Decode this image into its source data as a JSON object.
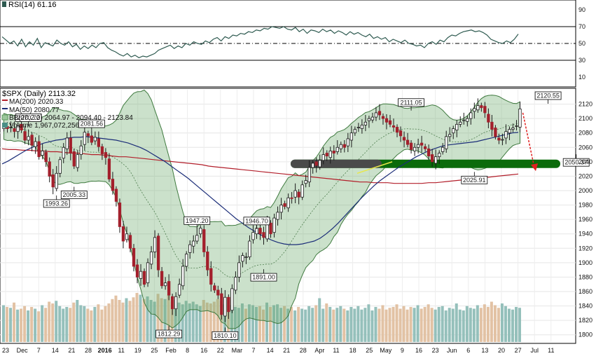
{
  "chart_data": [
    {
      "type": "line",
      "panel": "rsi",
      "title": "RSI(14) 61.16",
      "levels": [
        70,
        50,
        30
      ],
      "ylim": [
        0,
        100
      ],
      "ticks": [
        90,
        70,
        50,
        30,
        10
      ],
      "series": [
        {
          "name": "RSI(14)",
          "color": "#2e5a50",
          "values": [
            58,
            54,
            50,
            53,
            47,
            55,
            46,
            52,
            48,
            56,
            45,
            51,
            49,
            47,
            54,
            50,
            48,
            52,
            46,
            49,
            43,
            47,
            44,
            48,
            45,
            50,
            51,
            45,
            42,
            40,
            37,
            35,
            38,
            34,
            36,
            33,
            35,
            34,
            36,
            38,
            42,
            44,
            46,
            48,
            44,
            47,
            45,
            50,
            48,
            52,
            50,
            49,
            53,
            51,
            55,
            57,
            53,
            58,
            56,
            60,
            59,
            62,
            61,
            64,
            63,
            66,
            65,
            68,
            67,
            70,
            69,
            68,
            70,
            67,
            66,
            69,
            64,
            67,
            62,
            66,
            65,
            63,
            67,
            64,
            66,
            62,
            65,
            63,
            60,
            64,
            61,
            63,
            60,
            58,
            61,
            56,
            58,
            55,
            57,
            52,
            55,
            53,
            51,
            54,
            50,
            49,
            47,
            48,
            45,
            50,
            52,
            49,
            54,
            52,
            57,
            60,
            59,
            62,
            64,
            65,
            66,
            64,
            65,
            63,
            60,
            55,
            53,
            51,
            50,
            53,
            51,
            55,
            61.16
          ]
        }
      ]
    },
    {
      "type": "candlestick",
      "panel": "price",
      "title": "$SPX (Daily) 2113.32",
      "legend": [
        {
          "label": "MA(200) 2020.33",
          "color": "#b21e2a"
        },
        {
          "label": "MA(50) 2080.77",
          "color": "#1b2d78"
        },
        {
          "label": "BB(20,2.0) 2064.97 - 2094.40 - 2123.84",
          "color": "#6aa86a"
        },
        {
          "label": "Volume 1,967,072,256",
          "color": "#4a8f86"
        }
      ],
      "ylim": [
        1790,
        2140
      ],
      "ticks": [
        2120,
        2100,
        2080,
        2060,
        2040,
        2020,
        2000,
        1980,
        1960,
        1940,
        1920,
        1900,
        1880,
        1860,
        1840,
        1820,
        1800
      ],
      "x_labels": [
        "23",
        "Dec",
        "7",
        "14",
        "21",
        "28",
        "2016",
        "11",
        "19",
        "25",
        "Feb",
        "8",
        "16",
        "22",
        "Mar",
        "7",
        "14",
        "21",
        "28",
        "Apr",
        "11",
        "18",
        "25",
        "May",
        "9",
        "16",
        "23",
        "Jun",
        "6",
        "13",
        "20",
        "27",
        "Jul",
        "11"
      ],
      "closes": [
        2089,
        2086,
        2088,
        2082,
        2090,
        2084,
        2070,
        2075,
        2063,
        2068,
        2047,
        2055,
        2040,
        2020,
        2005,
        2024,
        2043,
        2060,
        2073,
        2052,
        2034,
        2050,
        2062,
        2081,
        2076,
        2067,
        2074,
        2061,
        2051,
        2046,
        2016,
        2000,
        1985,
        1950,
        1930,
        1940,
        1920,
        1895,
        1880,
        1888,
        1870,
        1900,
        1915,
        1935,
        1890,
        1868,
        1872,
        1855,
        1836,
        1853,
        1870,
        1895,
        1912,
        1925,
        1930,
        1938,
        1948,
        1915,
        1890,
        1870,
        1862,
        1855,
        1828,
        1852,
        1832,
        1864,
        1880,
        1900,
        1910,
        1908,
        1930,
        1942,
        1948,
        1940,
        1935,
        1955,
        1940,
        1962,
        1970,
        1980,
        1978,
        1990,
        1989,
        2000,
        1991,
        2008,
        2014,
        2032,
        2038,
        2035,
        2042,
        2050,
        2048,
        2055,
        2052,
        2060,
        2064,
        2060,
        2072,
        2080,
        2085,
        2088,
        2091,
        2095,
        2100,
        2102,
        2108,
        2105,
        2100,
        2095,
        2092,
        2088,
        2081,
        2076,
        2070,
        2064,
        2057,
        2060,
        2064,
        2063,
        2058,
        2048,
        2040,
        2047,
        2052,
        2060,
        2075,
        2078,
        2086,
        2092,
        2095,
        2098,
        2100,
        2108,
        2114,
        2118,
        2115,
        2108,
        2095,
        2085,
        2075,
        2070,
        2071,
        2082,
        2085,
        2087,
        2090,
        2113.32
      ],
      "annotations": [
        {
          "label": "2070.72",
          "x": 7,
          "y": 2090
        },
        {
          "label": "2081.56",
          "x": 25,
          "y": 2081.56
        },
        {
          "label": "1993.26",
          "x": 15,
          "y": 1993.26
        },
        {
          "label": "2005.33",
          "x": 20,
          "y": 2005.33
        },
        {
          "label": "1947.20",
          "x": 55,
          "y": 1947.2
        },
        {
          "label": "1946.70",
          "x": 72,
          "y": 1946.7
        },
        {
          "label": "1891.00",
          "x": 74,
          "y": 1891.0
        },
        {
          "label": "1812.29",
          "x": 47,
          "y": 1812.29
        },
        {
          "label": "1810.10",
          "x": 63,
          "y": 1810.1
        },
        {
          "label": "2111.05",
          "x": 116,
          "y": 2111.05
        },
        {
          "label": "2025.91",
          "x": 134,
          "y": 2025.91
        },
        {
          "label": "2120.55",
          "x": 155,
          "y": 2120.55
        },
        {
          "label": "2050.37",
          "x": 163,
          "y": 2050.37
        }
      ],
      "support_zone": {
        "y": 2025,
        "color": "#0b6b0b"
      },
      "projection": {
        "from": 2108,
        "to": 2030,
        "color": "#e02020"
      },
      "ma200_values": [
        2058,
        2057,
        2057,
        2056,
        2056,
        2055,
        2055,
        2054,
        2054,
        2053,
        2052,
        2052,
        2051,
        2050,
        2050,
        2049,
        2048,
        2047,
        2047,
        2046,
        2045,
        2044,
        2043,
        2042,
        2041,
        2040,
        2039,
        2038,
        2037,
        2036,
        2034,
        2033,
        2032,
        2031,
        2030,
        2029,
        2028,
        2027,
        2026,
        2025,
        2024,
        2023,
        2022,
        2021,
        2020,
        2019,
        2018,
        2017,
        2016,
        2015,
        2014,
        2013,
        2012,
        2012,
        2011,
        2011,
        2011,
        2010,
        2010,
        2010,
        2010,
        2010,
        2011,
        2011,
        2012,
        2013,
        2014,
        2015,
        2016,
        2017,
        2018,
        2019,
        2020,
        2021,
        2022,
        2023
      ],
      "ma50_values": [
        2037,
        2041,
        2046,
        2051,
        2056,
        2060,
        2063,
        2066,
        2068,
        2070,
        2071,
        2073,
        2074,
        2074,
        2075,
        2074,
        2073,
        2072,
        2071,
        2070,
        2068,
        2066,
        2063,
        2060,
        2056,
        2051,
        2046,
        2041,
        2035,
        2029,
        2023,
        2017,
        2010,
        2003,
        1996,
        1989,
        1982,
        1975,
        1968,
        1961,
        1955,
        1949,
        1944,
        1939,
        1935,
        1931,
        1928,
        1926,
        1925,
        1925,
        1926,
        1928,
        1930,
        1934,
        1940,
        1947,
        1955,
        1964,
        1973,
        1982,
        1991,
        1999,
        2007,
        2014,
        2020,
        2026,
        2032,
        2037,
        2042,
        2047,
        2051,
        2055,
        2058,
        2061,
        2063,
        2064,
        2065,
        2066,
        2067,
        2068,
        2070,
        2072,
        2074,
        2076,
        2078,
        2080,
        2080.77
      ],
      "volume": [
        4.2,
        4.0,
        3.9,
        4.5,
        3.7,
        3.8,
        4.1,
        3.6,
        4.0,
        3.8,
        3.5,
        4.2,
        3.9,
        4.6,
        4.4,
        4.7,
        4.1,
        3.8,
        4.0,
        3.9,
        4.5,
        4.8,
        4.2,
        4.1,
        3.8,
        3.6,
        4.0,
        4.3,
        3.7,
        4.1,
        4.4,
        4.9,
        5.3,
        4.8,
        4.5,
        5.0,
        4.7,
        5.1,
        5.6,
        5.4,
        4.9,
        5.2,
        4.8,
        4.6,
        5.5,
        5.0,
        4.9,
        5.4,
        4.6,
        4.8,
        4.5,
        4.3,
        4.7,
        4.4,
        4.6,
        4.3,
        4.1,
        4.8,
        4.5,
        4.4,
        4.6,
        4.9,
        4.7,
        4.3,
        5.1,
        4.2,
        4.0,
        3.9,
        4.4,
        3.8,
        4.3,
        4.2,
        4.0,
        4.1,
        3.7,
        4.5,
        4.0,
        4.2,
        4.3,
        3.9,
        4.1,
        3.8,
        4.0,
        3.6,
        4.0,
        3.8,
        3.7,
        4.1,
        3.9,
        4.2,
        5.0,
        3.8,
        4.4,
        4.0,
        3.7,
        3.9,
        4.1,
        3.8,
        3.6,
        4.0,
        3.8,
        4.1,
        3.7,
        3.9,
        4.3,
        3.6,
        4.0,
        3.8,
        4.2,
        3.7,
        3.9,
        4.0,
        4.3,
        3.8,
        4.1,
        3.7,
        4.0,
        3.9,
        4.2,
        3.8,
        4.0,
        4.3,
        3.9,
        3.7,
        4.0,
        4.1,
        3.6,
        3.9,
        3.8,
        4.4,
        3.7,
        3.6,
        4.1,
        3.9,
        3.8,
        4.2,
        3.9,
        4.3,
        4.0,
        4.6,
        4.2,
        3.9,
        4.4,
        4.1,
        3.8,
        3.7,
        4.0,
        3.9
      ]
    }
  ]
}
